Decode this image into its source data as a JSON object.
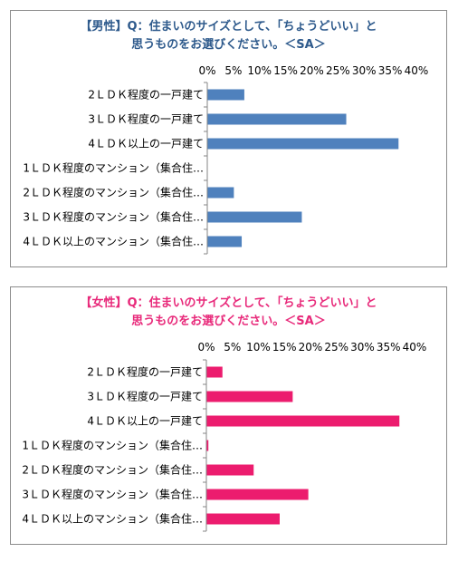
{
  "chart_data": [
    {
      "type": "bar",
      "orientation": "horizontal",
      "title_lines": [
        "【男性】Q：住まいのサイズとして、「ちょうどいい」と",
        "思うものをお選びください。＜SA＞"
      ],
      "categories": [
        "2ＬＤＫ程度の一戸建て",
        "3ＬＤＫ程度の一戸建て",
        "4ＬＤＫ以上の一戸建て",
        "1ＬＤＫ程度のマンション（集合住…",
        "2ＬＤＫ程度のマンション（集合住…",
        "3ＬＤＫ程度のマンション（集合住…",
        "4ＬＤＫ以上のマンション（集合住…"
      ],
      "values": [
        7,
        26.5,
        36.5,
        0,
        5,
        18,
        6.5
      ],
      "x_ticks": [
        "0%",
        "5%",
        "10%",
        "15%",
        "20%",
        "25%",
        "30%",
        "35%",
        "40%"
      ],
      "xlim": [
        0,
        40
      ],
      "color": "#4f81bd",
      "title_color": "#2e5a8c"
    },
    {
      "type": "bar",
      "orientation": "horizontal",
      "title_lines": [
        "【女性】Q：住まいのサイズとして、「ちょうどいい」と",
        "思うものをお選びください。＜SA＞"
      ],
      "categories": [
        "2ＬＤＫ程度の一戸建て",
        "3ＬＤＫ程度の一戸建て",
        "4ＬＤＫ以上の一戸建て",
        "1ＬＤＫ程度のマンション（集合住…",
        "2ＬＤＫ程度のマンション（集合住…",
        "3ＬＤＫ程度のマンション（集合住…",
        "4ＬＤＫ以上のマンション（集合住…"
      ],
      "values": [
        3,
        16.5,
        37,
        0.3,
        9,
        19.5,
        14
      ],
      "x_ticks": [
        "0%",
        "5%",
        "10%",
        "15%",
        "20%",
        "25%",
        "30%",
        "35%",
        "40%"
      ],
      "xlim": [
        0,
        40
      ],
      "color": "#ec1c6e",
      "title_color": "#e8297a"
    }
  ]
}
